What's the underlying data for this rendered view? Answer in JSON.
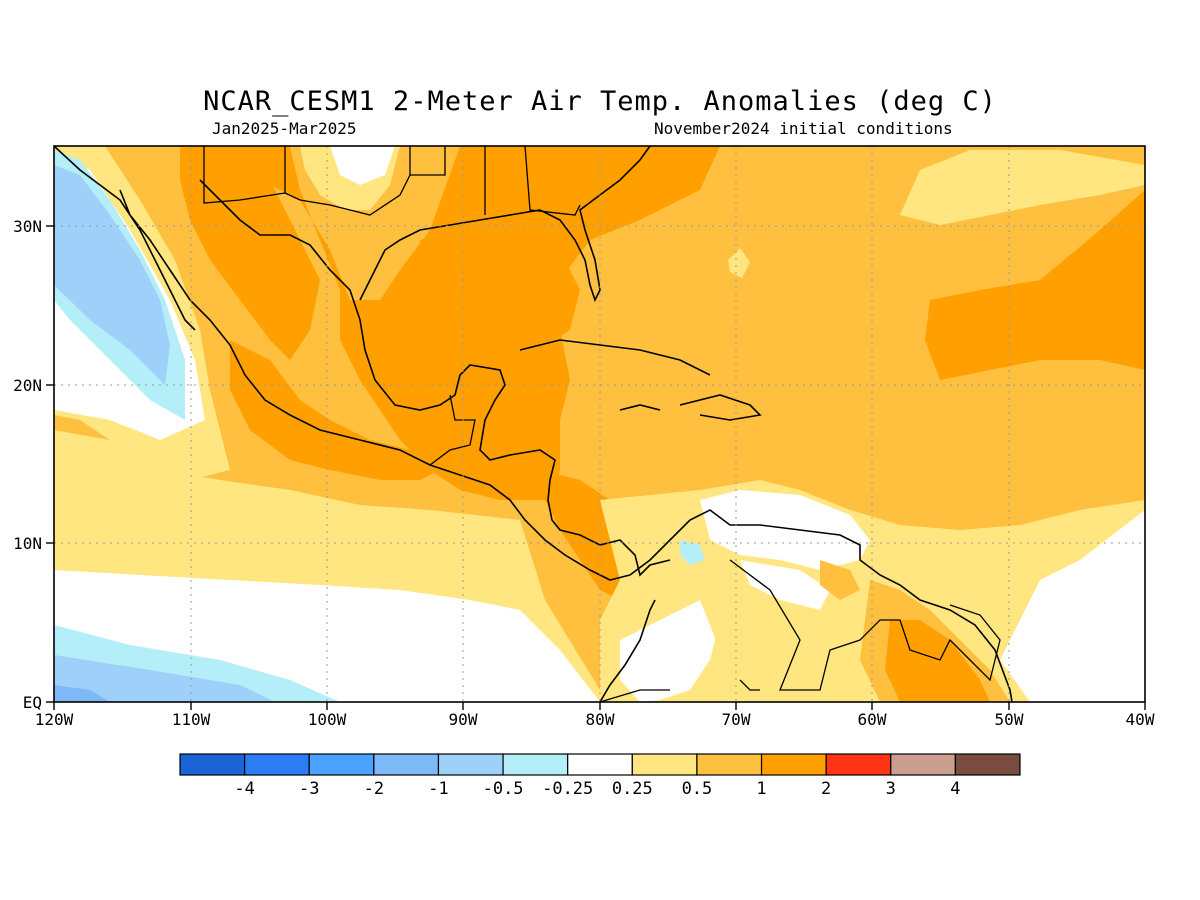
{
  "title": "NCAR_CESM1 2-Meter Air Temp. Anomalies (deg C)",
  "subtitle_left": "Jan2025-Mar2025",
  "subtitle_right": "November2024 initial conditions",
  "lat_labels": [
    "30N",
    "20N",
    "10N",
    "EQ"
  ],
  "lon_labels": [
    "120W",
    "110W",
    "100W",
    "90W",
    "80W",
    "70W",
    "60W",
    "50W",
    "40W"
  ],
  "colorbar": {
    "colors": [
      "#1a64d6",
      "#2a7df2",
      "#4aa2ff",
      "#7db8f8",
      "#9ed0fa",
      "#b4eef8",
      "#ffffff",
      "#ffe680",
      "#ffc040",
      "#ffa000",
      "#ff3414",
      "#cc9e90",
      "#7a4c40"
    ],
    "labels": [
      "-4",
      "-3",
      "-2",
      "-1",
      "-0.5",
      "-0.25",
      "0.25",
      "0.5",
      "1",
      "2",
      "3",
      "4"
    ]
  }
}
